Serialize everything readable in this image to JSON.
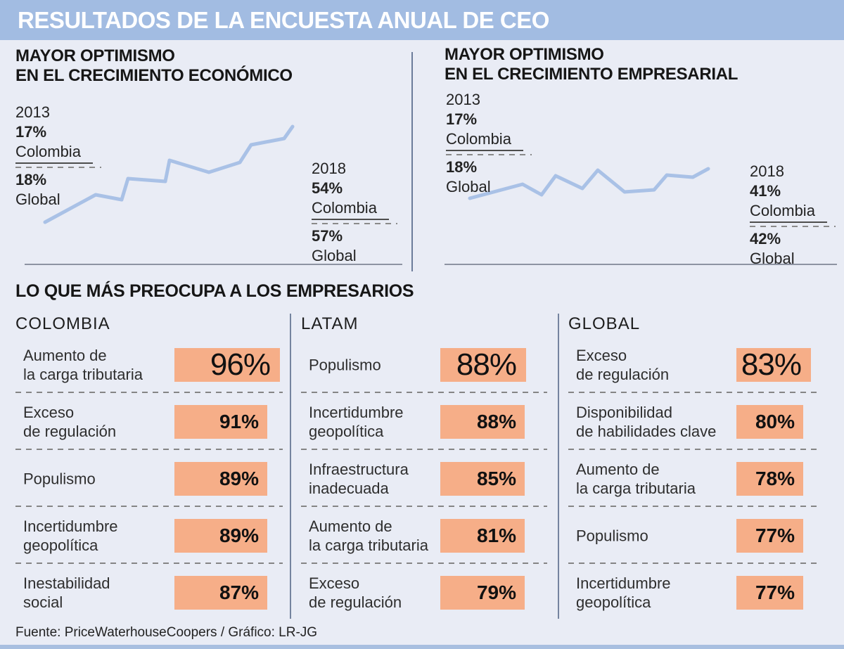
{
  "banner": {
    "title": "RESULTADOS DE LA ENCUESTA ANUAL DE CEO"
  },
  "colors": {
    "banner_blue": "#a2bce2",
    "background": "#e9ecf5",
    "line_blue": "#a9c1e6",
    "box_orange": "#f6ae88",
    "divider_gray": "#75849f"
  },
  "chart_data": [
    {
      "type": "line",
      "title": "MAYOR OPTIMISMO EN EL CRECIMIENTO ECONÓMICO",
      "title_line1": "MAYOR OPTIMISMO",
      "title_line2": "EN EL CRECIMIENTO ECONÓMICO",
      "x": [
        "2013",
        "2018"
      ],
      "series": [
        {
          "name": "Colombia",
          "values": [
            17,
            54
          ]
        },
        {
          "name": "Global",
          "values": [
            18,
            57
          ]
        }
      ],
      "start": {
        "year": "2013",
        "colombia_pct": "17%",
        "colombia_label": "Colombia",
        "global_pct": "18%",
        "global_label": "Global"
      },
      "end": {
        "year": "2018",
        "colombia_pct": "54%",
        "colombia_label": "Colombia",
        "global_pct": "57%",
        "global_label": "Global"
      },
      "legend_position": "inline-endpoints",
      "grid": false,
      "sparkline_points": [
        [
          64,
          316
        ],
        [
          136,
          277
        ],
        [
          173,
          284
        ],
        [
          182,
          254
        ],
        [
          235,
          258
        ],
        [
          241,
          228
        ],
        [
          297,
          245
        ],
        [
          341,
          231
        ],
        [
          357,
          206
        ],
        [
          404,
          197
        ],
        [
          416,
          180
        ]
      ]
    },
    {
      "type": "line",
      "title": "MAYOR OPTIMISMO EN EL CRECIMIENTO EMPRESARIAL",
      "title_line1": "MAYOR OPTIMISMO",
      "title_line2": "EN EL CRECIMIENTO EMPRESARIAL",
      "x": [
        "2013",
        "2018"
      ],
      "series": [
        {
          "name": "Colombia",
          "values": [
            17,
            41
          ]
        },
        {
          "name": "Global",
          "values": [
            18,
            42
          ]
        }
      ],
      "start": {
        "year": "2013",
        "colombia_pct": "17%",
        "colombia_label": "Colombia",
        "global_pct": "18%",
        "global_label": "Global"
      },
      "end": {
        "year": "2018",
        "colombia_pct": "41%",
        "colombia_label": "Colombia",
        "global_pct": "42%",
        "global_label": "Global"
      },
      "legend_position": "inline-endpoints",
      "grid": false,
      "sparkline_points": [
        [
          668,
          282
        ],
        [
          743,
          262
        ],
        [
          770,
          277
        ],
        [
          790,
          250
        ],
        [
          828,
          268
        ],
        [
          850,
          242
        ],
        [
          888,
          273
        ],
        [
          930,
          270
        ],
        [
          948,
          249
        ],
        [
          985,
          252
        ],
        [
          1007,
          240
        ]
      ]
    },
    {
      "type": "bar",
      "title": "LO QUE MÁS PREOCUPA A LOS EMPRESARIOS",
      "groups": [
        {
          "header": "COLOMBIA",
          "items": [
            {
              "label": "Aumento de\nla carga tributaria",
              "pct": "96%",
              "value": 96
            },
            {
              "label": "Exceso\nde regulación",
              "pct": "91%",
              "value": 91
            },
            {
              "label": "Populismo",
              "pct": "89%",
              "value": 89
            },
            {
              "label": "Incertidumbre\ngeopolítica",
              "pct": "89%",
              "value": 89
            },
            {
              "label": "Inestabilidad\nsocial",
              "pct": "87%",
              "value": 87
            }
          ]
        },
        {
          "header": "LATAM",
          "items": [
            {
              "label": "Populismo",
              "pct": "88%",
              "value": 88
            },
            {
              "label": "Incertidumbre\ngeopolítica",
              "pct": "88%",
              "value": 88
            },
            {
              "label": "Infraestructura\ninadecuada",
              "pct": "85%",
              "value": 85
            },
            {
              "label": "Aumento de\nla carga tributaria",
              "pct": "81%",
              "value": 81
            },
            {
              "label": "Exceso\nde regulación",
              "pct": "79%",
              "value": 79
            }
          ]
        },
        {
          "header": "GLOBAL",
          "items": [
            {
              "label": "Exceso\nde regulación",
              "pct": "83%",
              "value": 83
            },
            {
              "label": "Disponibilidad\nde habilidades clave",
              "pct": "80%",
              "value": 80
            },
            {
              "label": "Aumento de\nla carga tributaria",
              "pct": "78%",
              "value": 78
            },
            {
              "label": "Populismo",
              "pct": "77%",
              "value": 77
            },
            {
              "label": "Incertidumbre\ngeopolítica",
              "pct": "77%",
              "value": 77
            }
          ]
        }
      ]
    }
  ],
  "footer": {
    "source": "Fuente: PriceWaterhouseCoopers / Gráfico: LR-JG"
  }
}
